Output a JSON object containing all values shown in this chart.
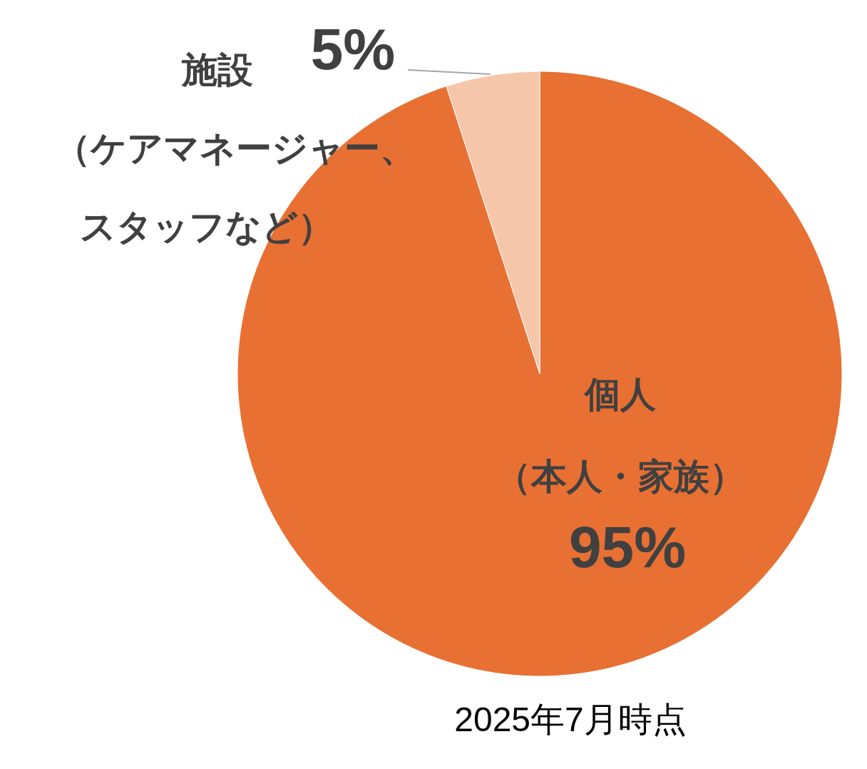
{
  "chart_data": {
    "type": "pie",
    "categories": [
      "個人（本人・家族）",
      "施設（ケアマネージャー、スタッフなど）"
    ],
    "values": [
      95,
      5
    ],
    "colors": [
      "#e87033",
      "#f6c6aa"
    ],
    "value_labels": [
      "95%",
      "5%"
    ],
    "annotations": [
      "2025年7月時点"
    ]
  }
}
